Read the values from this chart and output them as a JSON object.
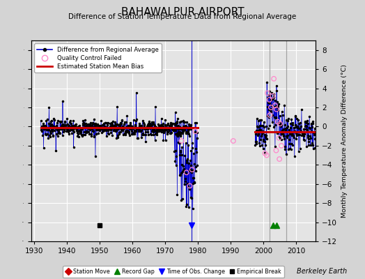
{
  "title": "BAHAWALPUR AIRPORT",
  "subtitle": "Difference of Station Temperature Data from Regional Average",
  "ylabel": "Monthly Temperature Anomaly Difference (°C)",
  "watermark": "Berkeley Earth",
  "xlim": [
    1929,
    2016
  ],
  "ylim": [
    -12,
    9
  ],
  "yticks": [
    -12,
    -10,
    -8,
    -6,
    -4,
    -2,
    0,
    2,
    4,
    6,
    8
  ],
  "xticks": [
    1930,
    1940,
    1950,
    1960,
    1970,
    1980,
    1990,
    2000,
    2010
  ],
  "bg_color": "#d4d4d4",
  "plot_bg_color": "#e4e4e4",
  "grid_color": "#ffffff",
  "main_line_color": "#0000cc",
  "bias_line_color": "#cc0000",
  "qc_marker_color": "#ff88cc",
  "data_marker_color": "#000000",
  "vline_color": "#888888",
  "seg1_start": 1932,
  "seg1_end": 1977.9,
  "seg1_bias": -0.15,
  "seg2_start": 1997.5,
  "seg2_end": 2015.9,
  "seg2_bias": -0.55,
  "dip_start": 1973,
  "dip_end": 1979.9,
  "vline1_x": 1978,
  "vline2_x": 2002,
  "vline3_x": 2007,
  "empirical_break_x": 1950,
  "obs_change_x": 1978,
  "record_gap_x1": 2003,
  "record_gap_x2": 2004,
  "event_y": -10.3,
  "seed": 7
}
